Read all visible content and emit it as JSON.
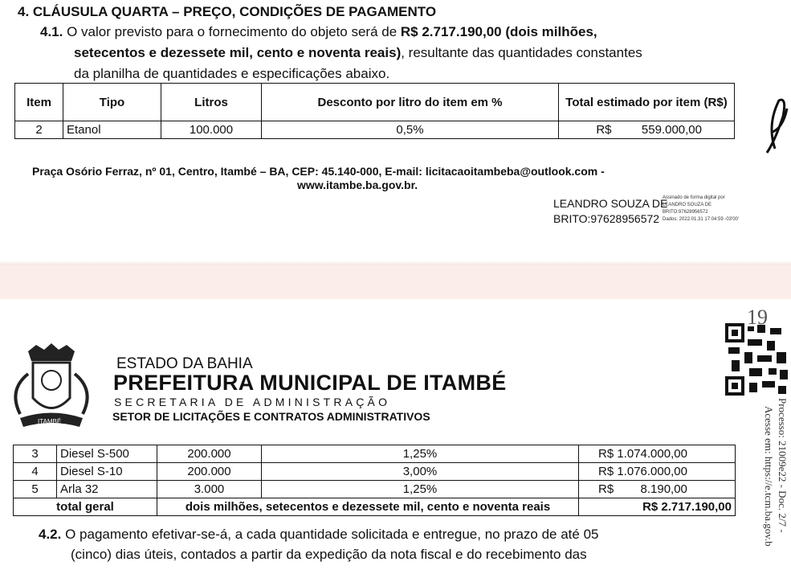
{
  "page1": {
    "heading": "4.  CLÁUSULA QUARTA – PREÇO, CONDIÇÕES DE PAGAMENTO",
    "clause_num": "4.1.",
    "line1a": "O valor previsto para o fornecimento do objeto será de ",
    "line1b": "R$ 2.717.190,00 (dois milhões,",
    "line2a": "setecentos e dezessete mil, cento e noventa reais)",
    "line2b": ", resultante das quantidades constantes",
    "line3": "da planilha de quantidades e especificações abaixo.",
    "table": {
      "headers": [
        "Item",
        "Tipo",
        "Litros",
        "Desconto por litro do item em %",
        "Total estimado por item (R$)"
      ],
      "rows": [
        [
          "2",
          "Etanol",
          "100.000",
          "0,5%",
          "R$",
          "559.000,00"
        ]
      ]
    },
    "address1": "Praça Osório Ferraz, nº 01, Centro, Itambé – BA, CEP: 45.140-000, E-mail: licitacaoitambeba@outlook.com -",
    "address2": "www.itambe.ba.gov.br.",
    "signature": {
      "name1": "LEANDRO SOUZA DE",
      "name2": "BRITO:97628956572",
      "small1": "Assinado de forma digital por",
      "small2": "LEANDRO SOUZA DE",
      "small3": "BRITO:97628956572",
      "small4": "Dados: 2022.01.31 17:04:59 -03'00'"
    }
  },
  "page2": {
    "page_mark": "19",
    "crest_label": "ITAMBÉ",
    "estado": "ESTADO DA BAHIA",
    "prefeitura": "PREFEITURA MUNICIPAL DE ITAMBÉ",
    "secretaria": "SECRETARIA DE ADMINISTRAÇÃO",
    "setor": "SETOR DE LICITAÇÕES E CONTRATOS ADMINISTRATIVOS",
    "table": {
      "rows": [
        [
          "3",
          "Diesel S-500",
          "200.000",
          "1,25%",
          "R$ 1.074.000,00"
        ],
        [
          "4",
          "Diesel S-10",
          "200.000",
          "3,00%",
          "R$ 1.076.000,00"
        ],
        [
          "5",
          "Arla 32",
          "3.000",
          "1,25%",
          "R$        8.190,00"
        ]
      ],
      "total_label": "total geral",
      "total_words": "dois milhões, setecentos e dezessete mil, cento e noventa reais",
      "total_value": "R$ 2.717.190,00"
    },
    "clause_num": "4.2.",
    "line1": "O pagamento efetivar-se-á, a cada quantidade solicitada e entregue, no prazo de até 05",
    "line2": "(cinco) dias úteis, contados a partir da expedição da nota fiscal e do recebimento das",
    "side1": "Processo: 21009e22 - Doc. 2/7 -",
    "side2": "Acesse em: https://e.tcm.ba.gov.b"
  }
}
